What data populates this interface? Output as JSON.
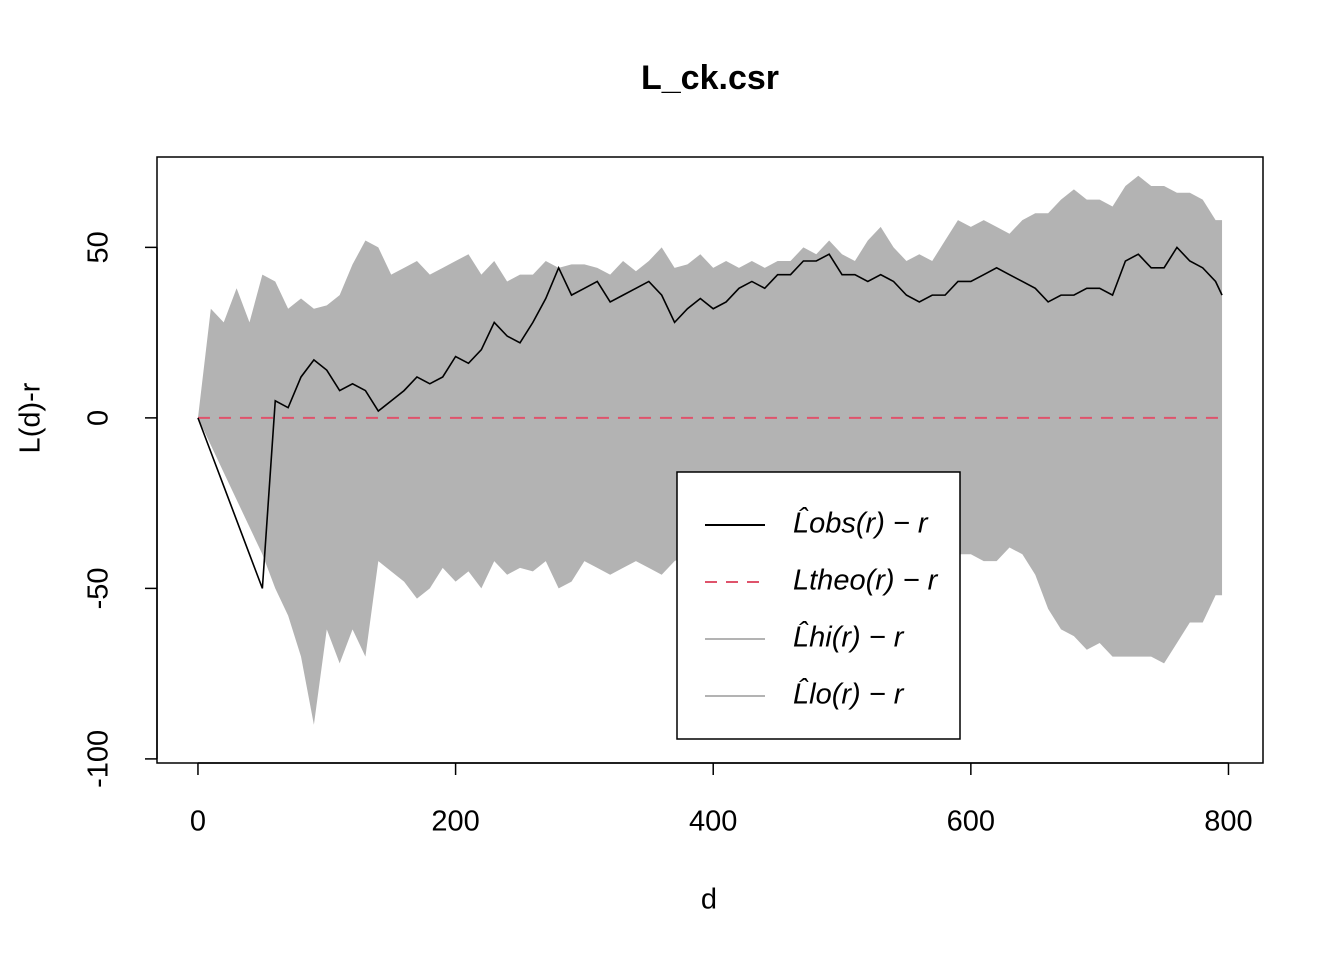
{
  "chart_data": {
    "type": "envelope",
    "title": "L_ck.csr",
    "x_label": "d",
    "y_label": "L(d)-r",
    "x": [
      0,
      10,
      20,
      30,
      40,
      50,
      60,
      70,
      80,
      90,
      100,
      110,
      120,
      130,
      140,
      150,
      160,
      170,
      180,
      190,
      200,
      210,
      220,
      230,
      240,
      250,
      260,
      270,
      280,
      290,
      300,
      310,
      320,
      330,
      340,
      350,
      360,
      370,
      380,
      390,
      400,
      410,
      420,
      430,
      440,
      450,
      460,
      470,
      480,
      490,
      500,
      510,
      520,
      530,
      540,
      550,
      560,
      570,
      580,
      590,
      600,
      610,
      620,
      630,
      640,
      650,
      660,
      670,
      680,
      690,
      700,
      710,
      720,
      730,
      740,
      750,
      760,
      770,
      780,
      790,
      795
    ],
    "series": [
      {
        "name": "L̂obs(r) − r",
        "color": "#000000",
        "dash": false,
        "values": [
          0,
          -10,
          -20,
          -30,
          -40,
          -50,
          5,
          3,
          12,
          17,
          14,
          8,
          10,
          8,
          2,
          5,
          8,
          12,
          10,
          12,
          18,
          16,
          20,
          28,
          24,
          22,
          28,
          35,
          44,
          36,
          38,
          40,
          34,
          36,
          38,
          40,
          36,
          28,
          32,
          35,
          32,
          34,
          38,
          40,
          38,
          42,
          42,
          46,
          46,
          48,
          42,
          42,
          40,
          42,
          40,
          36,
          34,
          36,
          36,
          40,
          40,
          42,
          44,
          42,
          40,
          38,
          34,
          36,
          36,
          38,
          38,
          36,
          46,
          48,
          44,
          44,
          50,
          46,
          44,
          40,
          36
        ]
      },
      {
        "name": "Ltheo(r) − r",
        "color": "#DF536B",
        "dash": true,
        "values": [
          0,
          0,
          0,
          0,
          0,
          0,
          0,
          0,
          0,
          0,
          0,
          0,
          0,
          0,
          0,
          0,
          0,
          0,
          0,
          0,
          0,
          0,
          0,
          0,
          0,
          0,
          0,
          0,
          0,
          0,
          0,
          0,
          0,
          0,
          0,
          0,
          0,
          0,
          0,
          0,
          0,
          0,
          0,
          0,
          0,
          0,
          0,
          0,
          0,
          0,
          0,
          0,
          0,
          0,
          0,
          0,
          0,
          0,
          0,
          0,
          0,
          0,
          0,
          0,
          0,
          0,
          0,
          0,
          0,
          0,
          0,
          0,
          0,
          0,
          0,
          0,
          0,
          0,
          0,
          0,
          0
        ]
      },
      {
        "name": "L̂hi(r) − r",
        "color": "#b3b3b3",
        "dash": false,
        "values": [
          0,
          32,
          28,
          38,
          28,
          42,
          40,
          32,
          35,
          32,
          33,
          36,
          45,
          52,
          50,
          42,
          44,
          46,
          42,
          44,
          46,
          48,
          42,
          46,
          40,
          42,
          42,
          46,
          44,
          45,
          45,
          44,
          42,
          46,
          43,
          46,
          50,
          44,
          45,
          48,
          44,
          46,
          44,
          46,
          44,
          46,
          46,
          50,
          48,
          52,
          48,
          46,
          52,
          56,
          50,
          46,
          48,
          46,
          52,
          58,
          56,
          58,
          56,
          54,
          58,
          60,
          60,
          64,
          67,
          64,
          64,
          62,
          68,
          71,
          68,
          68,
          66,
          66,
          64,
          58,
          58
        ]
      },
      {
        "name": "L̂lo(r) − r",
        "color": "#b3b3b3",
        "dash": false,
        "values": [
          0,
          -8,
          -16,
          -24,
          -32,
          -40,
          -50,
          -58,
          -70,
          -90,
          -62,
          -72,
          -62,
          -70,
          -42,
          -45,
          -48,
          -53,
          -50,
          -44,
          -48,
          -45,
          -50,
          -42,
          -46,
          -44,
          -45,
          -42,
          -50,
          -48,
          -42,
          -44,
          -46,
          -44,
          -42,
          -44,
          -46,
          -42,
          -40,
          -44,
          -42,
          -40,
          -38,
          -41,
          -36,
          -40,
          -38,
          -40,
          -42,
          -38,
          -44,
          -38,
          -42,
          -40,
          -44,
          -44,
          -40,
          -42,
          -38,
          -40,
          -40,
          -42,
          -42,
          -38,
          -40,
          -46,
          -56,
          -62,
          -64,
          -68,
          -66,
          -70,
          -70,
          -70,
          -70,
          -72,
          -66,
          -60,
          -60,
          -52,
          -52
        ]
      }
    ],
    "xlim": [
      -31.8,
      826.8
    ],
    "ylim": [
      -101.2,
      76.5
    ],
    "xticks": [
      0,
      200,
      400,
      600,
      800
    ],
    "yticks": [
      -100,
      -50,
      0,
      50
    ]
  }
}
